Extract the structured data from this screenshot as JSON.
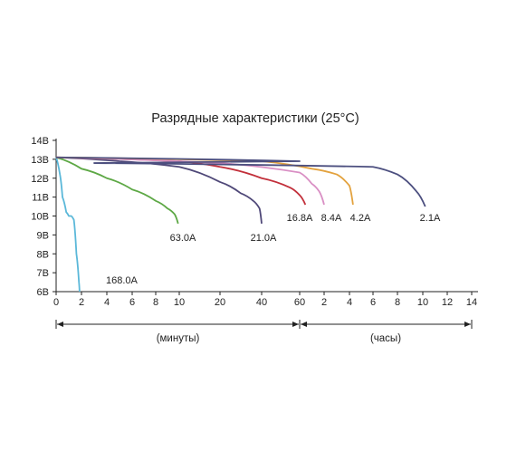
{
  "chart_data": {
    "type": "line",
    "title": "Разрядные характеристики (25°С)",
    "ylim": [
      6,
      14
    ],
    "y_tick_labels": [
      "14В",
      "13В",
      "12В",
      "11В",
      "10В",
      "9В",
      "8В",
      "7В",
      "6В"
    ],
    "x_tick_labels": [
      "0",
      "2",
      "4",
      "6",
      "8",
      "10",
      "20",
      "40",
      "60",
      "2",
      "4",
      "6",
      "8",
      "10",
      "12",
      "14"
    ],
    "x_ticks_minutes": [
      0,
      2,
      4,
      6,
      8,
      10,
      20,
      40,
      60
    ],
    "x_ticks_hours": [
      2,
      4,
      6,
      8,
      10,
      12,
      14
    ],
    "x_segments": [
      {
        "label": "(минуты)",
        "from": 0,
        "to": 60,
        "unit": "minutes"
      },
      {
        "label": "(часы)",
        "from": 1,
        "to": 14,
        "unit": "hours"
      }
    ],
    "grid": false,
    "series": [
      {
        "name": "168.0A",
        "color": "#5bb8d9",
        "points": [
          [
            0,
            13.1
          ],
          [
            0.3,
            12.2
          ],
          [
            0.5,
            11.0
          ],
          [
            0.8,
            10.2
          ],
          [
            1.0,
            10.0
          ],
          [
            1.2,
            10.0
          ],
          [
            1.4,
            9.8
          ],
          [
            1.6,
            8.0
          ],
          [
            1.8,
            6.5
          ],
          [
            1.85,
            6.0
          ]
        ]
      },
      {
        "name": "63.0A",
        "color": "#5da845",
        "points": [
          [
            0,
            13.1
          ],
          [
            2,
            12.5
          ],
          [
            4,
            12.0
          ],
          [
            6,
            11.4
          ],
          [
            8,
            10.8
          ],
          [
            9,
            10.4
          ],
          [
            9.6,
            10.1
          ],
          [
            9.9,
            9.6
          ]
        ]
      },
      {
        "name": "21.0A",
        "color": "#4f4878",
        "points": [
          [
            0,
            13.1
          ],
          [
            5,
            12.9
          ],
          [
            10,
            12.6
          ],
          [
            20,
            11.8
          ],
          [
            30,
            11.2
          ],
          [
            36,
            10.8
          ],
          [
            39,
            10.4
          ],
          [
            40,
            9.6
          ]
        ]
      },
      {
        "name": "16.8A",
        "color": "#c22f3a",
        "points": [
          [
            0,
            13.1
          ],
          [
            10,
            12.9
          ],
          [
            20,
            12.6
          ],
          [
            40,
            12.0
          ],
          [
            55,
            11.5
          ],
          [
            60,
            11.1
          ],
          [
            63,
            10.6
          ]
        ]
      },
      {
        "name": "8.4A",
        "color": "#d98fc4",
        "points": [
          [
            0,
            13.1
          ],
          [
            20,
            12.8
          ],
          [
            60,
            12.3
          ],
          [
            1.5,
            11.7
          ],
          [
            1.8,
            11.3
          ],
          [
            2.0,
            10.6
          ]
        ]
      },
      {
        "name": "4.2A",
        "color": "#e3a23e",
        "points": [
          [
            0,
            13.1
          ],
          [
            40,
            12.9
          ],
          [
            1.5,
            12.5
          ],
          [
            3,
            12.2
          ],
          [
            4,
            11.6
          ],
          [
            4.3,
            10.6
          ]
        ]
      },
      {
        "name": "2.1A",
        "color": "#4c4f7f",
        "points": [
          [
            0,
            13.1
          ],
          [
            60,
            12.9
          ],
          [
            3,
            12.8
          ],
          [
            6,
            12.6
          ],
          [
            8,
            12.2
          ],
          [
            9.5,
            11.3
          ],
          [
            10.2,
            10.5
          ]
        ]
      }
    ],
    "series_hours_start_index": [
      null,
      null,
      null,
      null,
      3,
      2,
      3
    ]
  }
}
